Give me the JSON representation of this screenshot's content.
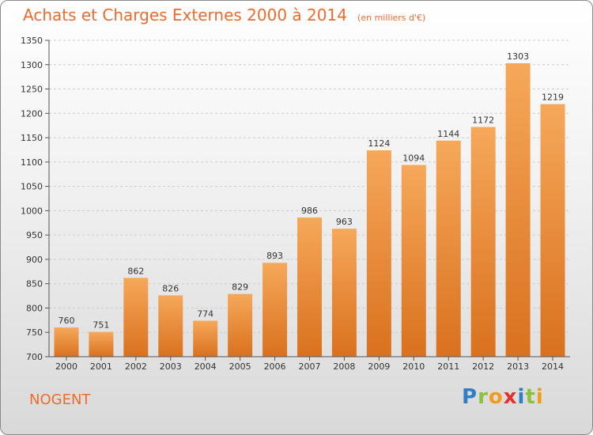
{
  "title": "Achats et Charges Externes 2000 à 2014",
  "unit": "(en milliers d'€)",
  "commune": "NOGENT",
  "logo": {
    "letters": [
      "P",
      "r",
      "o",
      "x",
      "i",
      "t",
      "i"
    ],
    "colors": [
      "#2f7fc4",
      "#8cc13f",
      "#f29a1c",
      "#e2322d",
      "#2f7fc4",
      "#8cc13f",
      "#f29a1c"
    ]
  },
  "colors": {
    "accent": "#ec6b2d",
    "bar_light": "#f6a85a",
    "bar_dark": "#d9711e",
    "grid": "#cccccc"
  },
  "chart_data": {
    "type": "bar",
    "title": "Achats et Charges Externes 2000 à 2014",
    "categories": [
      "2000",
      "2001",
      "2002",
      "2003",
      "2004",
      "2005",
      "2006",
      "2007",
      "2008",
      "2009",
      "2010",
      "2011",
      "2012",
      "2013",
      "2014"
    ],
    "values": [
      760,
      751,
      862,
      826,
      774,
      829,
      893,
      986,
      963,
      1124,
      1094,
      1144,
      1172,
      1303,
      1219
    ],
    "ylim": [
      700,
      1350
    ],
    "yticks": [
      700,
      750,
      800,
      850,
      900,
      950,
      1000,
      1050,
      1100,
      1150,
      1200,
      1250,
      1300,
      1350
    ],
    "grid": true,
    "data_labels": true
  }
}
